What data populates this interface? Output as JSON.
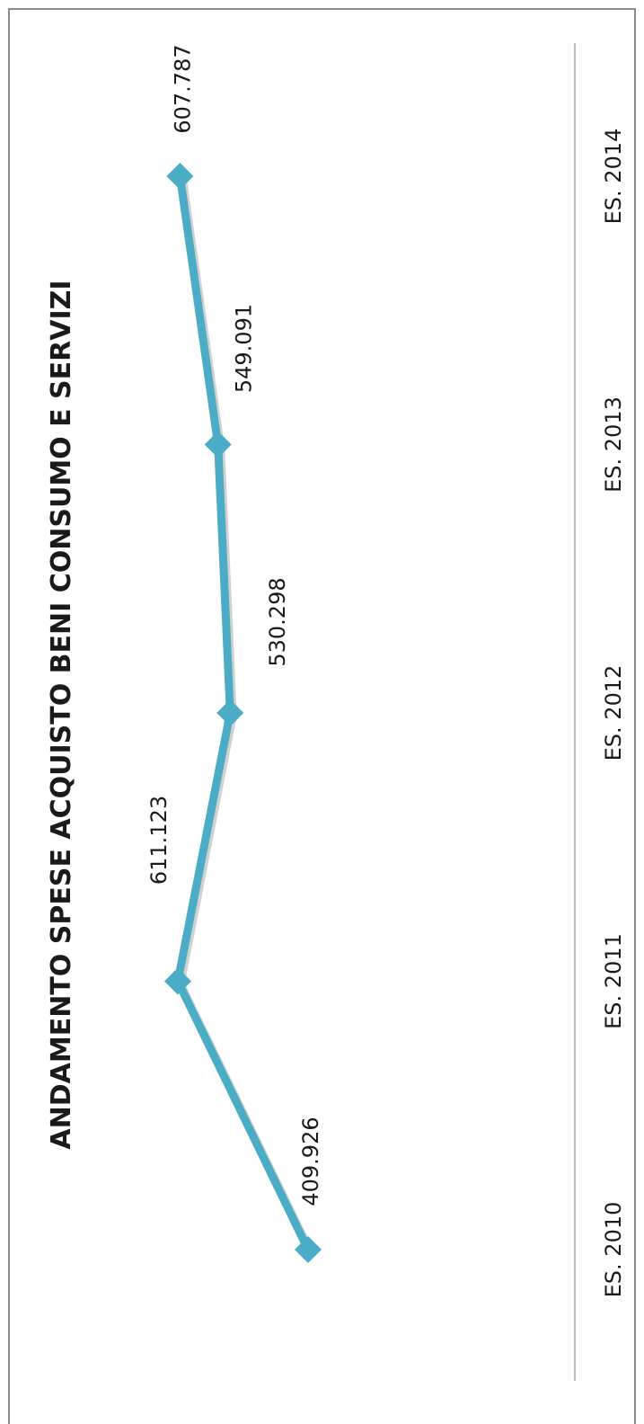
{
  "chart_data": {
    "type": "line",
    "title": "ANDAMENTO SPESE ACQUISTO BENI CONSUMO E SERVIZI",
    "categories": [
      "ES. 2010",
      "ES. 2011",
      "ES. 2012",
      "ES. 2013",
      "ES. 2014"
    ],
    "series": [
      {
        "values": [
          409.926,
          611.123,
          530.298,
          549.091,
          607.787
        ],
        "labels": [
          "409.926",
          "611.123",
          "530.298",
          "549.091",
          "607.787"
        ],
        "color": "#4bacc6",
        "marker": "diamond"
      }
    ],
    "ylim": [
      250,
      750
    ],
    "orientation": "rotated-90",
    "grid": false,
    "legend": "none"
  }
}
